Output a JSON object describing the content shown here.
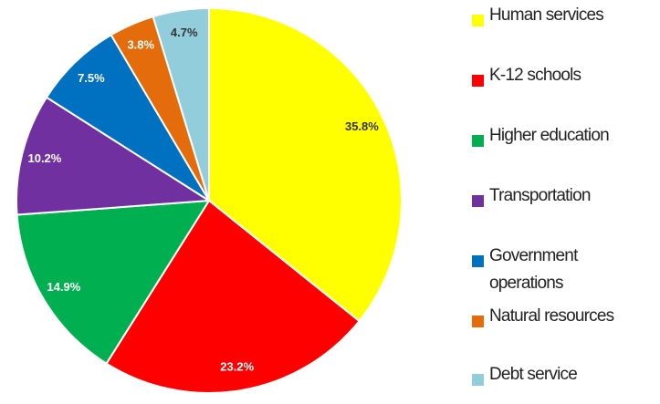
{
  "chart_data": {
    "type": "pie",
    "categories": [
      "Human services",
      "K-12 schools",
      "Higher education",
      "Transportation",
      "Government operations",
      "Natural resources",
      "Debt service"
    ],
    "values": [
      35.8,
      23.2,
      14.9,
      10.2,
      7.5,
      3.8,
      4.7
    ],
    "value_labels": [
      "35.8%",
      "23.2%",
      "14.9%",
      "10.2%",
      "7.5%",
      "3.8%",
      "4.7%"
    ],
    "colors": [
      "#ffff00",
      "#ff0000",
      "#00b050",
      "#7030a0",
      "#0070c0",
      "#e46c0a",
      "#92cddc"
    ]
  }
}
